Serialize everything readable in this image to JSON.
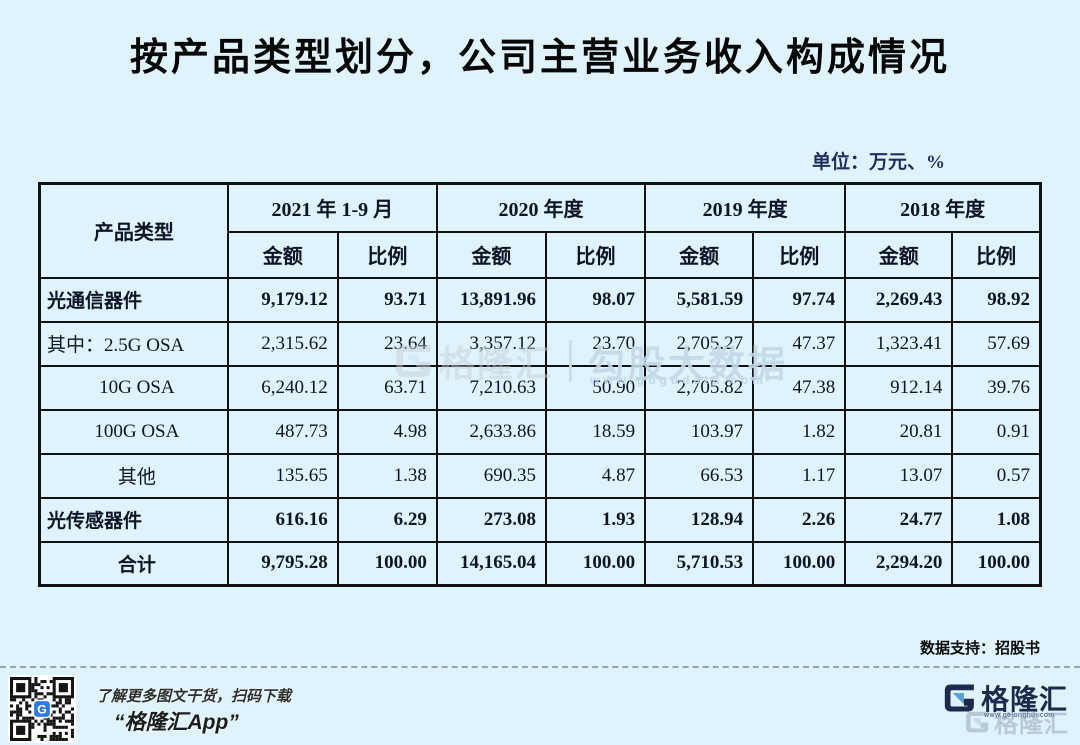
{
  "page": {
    "title": "按产品类型划分，公司主营业务收入构成情况",
    "unit_label": "单位：万元、%",
    "source_note": "数据支持：招股书",
    "background_color": "#def3fc",
    "brand_navy": "#1e2a4c",
    "brand_blue": "#2f7ce0"
  },
  "table": {
    "corner_header": "产品类型",
    "col_groups": [
      "2021 年 1-9 月",
      "2020 年度",
      "2019 年度",
      "2018 年度"
    ],
    "sub_headers": [
      "金额",
      "比例"
    ],
    "rows": [
      {
        "label": "光通信器件",
        "bold": true,
        "align": "left",
        "values": [
          "9,179.12",
          "93.71",
          "13,891.96",
          "98.07",
          "5,581.59",
          "97.74",
          "2,269.43",
          "98.92"
        ]
      },
      {
        "label": "其中：2.5G OSA",
        "bold": false,
        "align": "left",
        "values": [
          "2,315.62",
          "23.64",
          "3,357.12",
          "23.70",
          "2,705.27",
          "47.37",
          "1,323.41",
          "57.69"
        ]
      },
      {
        "label": "10G OSA",
        "bold": false,
        "align": "center",
        "values": [
          "6,240.12",
          "63.71",
          "7,210.63",
          "50.90",
          "2,705.82",
          "47.38",
          "912.14",
          "39.76"
        ]
      },
      {
        "label": "100G OSA",
        "bold": false,
        "align": "center",
        "values": [
          "487.73",
          "4.98",
          "2,633.86",
          "18.59",
          "103.97",
          "1.82",
          "20.81",
          "0.91"
        ]
      },
      {
        "label": "其他",
        "bold": false,
        "align": "center",
        "values": [
          "135.65",
          "1.38",
          "690.35",
          "4.87",
          "66.53",
          "1.17",
          "13.07",
          "0.57"
        ]
      },
      {
        "label": "光传感器件",
        "bold": true,
        "align": "left",
        "values": [
          "616.16",
          "6.29",
          "273.08",
          "1.93",
          "128.94",
          "2.26",
          "24.77",
          "1.08"
        ]
      },
      {
        "label": "合计",
        "bold": true,
        "align": "center",
        "values": [
          "9,795.28",
          "100.00",
          "14,165.04",
          "100.00",
          "5,710.53",
          "100.00",
          "2,294.20",
          "100.00"
        ]
      }
    ]
  },
  "chart_data": {
    "type": "table",
    "title": "按产品类型划分，公司主营业务收入构成情况",
    "unit": "万元、%",
    "columns": [
      "产品类型",
      "2021年1-9月 金额",
      "2021年1-9月 比例",
      "2020年度 金额",
      "2020年度 比例",
      "2019年度 金额",
      "2019年度 比例",
      "2018年度 金额",
      "2018年度 比例"
    ],
    "rows": [
      [
        "光通信器件",
        9179.12,
        93.71,
        13891.96,
        98.07,
        5581.59,
        97.74,
        2269.43,
        98.92
      ],
      [
        "其中：2.5G OSA",
        2315.62,
        23.64,
        3357.12,
        23.7,
        2705.27,
        47.37,
        1323.41,
        57.69
      ],
      [
        "10G OSA",
        6240.12,
        63.71,
        7210.63,
        50.9,
        2705.82,
        47.38,
        912.14,
        39.76
      ],
      [
        "100G OSA",
        487.73,
        4.98,
        2633.86,
        18.59,
        103.97,
        1.82,
        20.81,
        0.91
      ],
      [
        "其他",
        135.65,
        1.38,
        690.35,
        4.87,
        66.53,
        1.17,
        13.07,
        0.57
      ],
      [
        "光传感器件",
        616.16,
        6.29,
        273.08,
        1.93,
        128.94,
        2.26,
        24.77,
        1.08
      ],
      [
        "合计",
        9795.28,
        100.0,
        14165.04,
        100.0,
        5710.53,
        100.0,
        2294.2,
        100.0
      ]
    ],
    "source": "招股书"
  },
  "watermark": {
    "brand": "格隆汇",
    "slogan": "勾股大数据",
    "url": "www.gogudata.com"
  },
  "footer": {
    "promo_line1": "了解更多图文干货，扫码下载",
    "promo_line2": "“格隆汇App”",
    "brand_name": "格隆汇",
    "brand_url": "www.gelonghui.com"
  }
}
